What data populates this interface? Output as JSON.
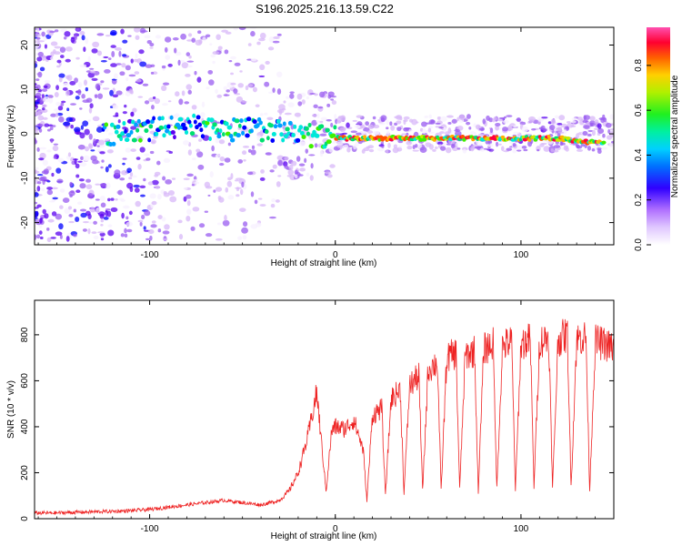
{
  "figure": {
    "title": "S196.2025.216.13.59.C22"
  },
  "chart_data": [
    {
      "type": "heatmap",
      "xlabel": "Height of straight line (km)",
      "ylabel": "Frequency (Hz)",
      "xlim": [
        -162,
        150
      ],
      "ylim": [
        -25,
        24
      ],
      "xticks": [
        -100,
        0,
        100
      ],
      "yticks": [
        -20,
        -10,
        0,
        10,
        20
      ],
      "colorbar": {
        "label": "Normalized spectral amplitude",
        "range": [
          0.0,
          0.97
        ],
        "ticks": [
          "0.0",
          "0.2",
          "0.4",
          "0.6",
          "0.8"
        ],
        "colors": [
          "#f7f0ff",
          "#d8b8f8",
          "#9a5cf0",
          "#5a00f0",
          "#0000ff",
          "#00a0ff",
          "#00e8d8",
          "#00e070",
          "#40f000",
          "#c8e800",
          "#ffb000",
          "#ff5000",
          "#ff0040",
          "#ff40a0"
        ]
      },
      "ridge": {
        "description_free": true,
        "x": [
          -120,
          -100,
          -80,
          -60,
          -40,
          -20,
          0,
          20,
          40,
          60,
          80,
          100,
          120,
          140
        ],
        "frequency": [
          0,
          1,
          2,
          1,
          1,
          0,
          -1,
          -1,
          -1,
          -1,
          -1,
          -1,
          -1,
          -2
        ]
      }
    },
    {
      "type": "line",
      "xlabel": "Height of straight line (km)",
      "ylabel": "SNR (10 * v/v)",
      "xlim": [
        -162,
        150
      ],
      "ylim": [
        0,
        950
      ],
      "xticks": [
        -100,
        0,
        100
      ],
      "yticks": [
        0,
        200,
        400,
        600,
        800
      ],
      "series": [
        {
          "color": "#ee2222",
          "x": [
            -162,
            -150,
            -140,
            -130,
            -120,
            -110,
            -100,
            -90,
            -80,
            -70,
            -60,
            -50,
            -40,
            -30,
            -25,
            -20,
            -15,
            -10,
            -5,
            -2,
            0,
            5,
            10,
            15,
            17,
            20,
            25,
            27,
            30,
            35,
            37,
            40,
            45,
            47,
            50,
            55,
            57,
            60,
            65,
            67,
            70,
            75,
            77,
            80,
            85,
            87,
            90,
            95,
            97,
            100,
            105,
            107,
            110,
            115,
            117,
            120,
            125,
            127,
            130,
            135,
            137,
            140,
            145,
            150
          ],
          "y": [
            25,
            25,
            28,
            30,
            32,
            35,
            40,
            50,
            60,
            70,
            80,
            70,
            60,
            80,
            120,
            200,
            350,
            550,
            120,
            380,
            400,
            390,
            430,
            300,
            80,
            450,
            480,
            100,
            520,
            560,
            110,
            580,
            620,
            120,
            650,
            680,
            120,
            700,
            720,
            130,
            710,
            730,
            120,
            740,
            760,
            130,
            750,
            770,
            120,
            760,
            780,
            140,
            770,
            790,
            130,
            780,
            800,
            140,
            780,
            790,
            130,
            770,
            760,
            740
          ]
        }
      ]
    }
  ]
}
